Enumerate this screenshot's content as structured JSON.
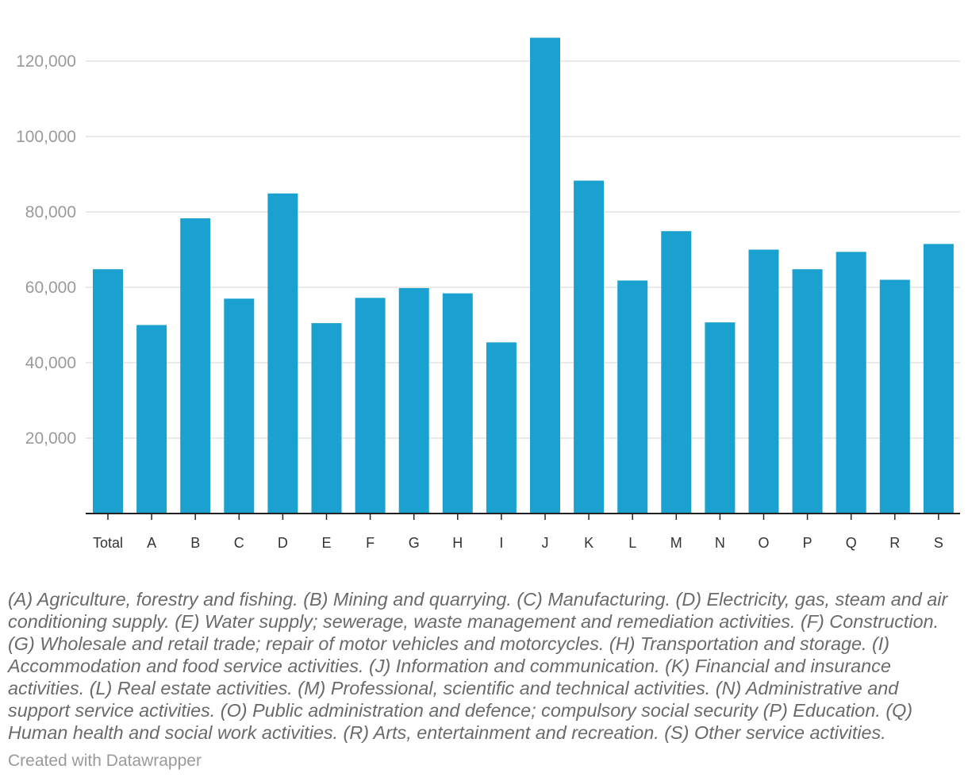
{
  "chart_data": {
    "type": "bar",
    "categories": [
      "Total",
      "A",
      "B",
      "C",
      "D",
      "E",
      "F",
      "G",
      "H",
      "I",
      "J",
      "K",
      "L",
      "M",
      "N",
      "O",
      "P",
      "Q",
      "R",
      "S"
    ],
    "values": [
      64800,
      50000,
      78300,
      57000,
      84900,
      50500,
      57200,
      59800,
      58400,
      45400,
      126200,
      88300,
      61800,
      74900,
      50700,
      70000,
      64800,
      69400,
      62000,
      71500
    ],
    "yticks": [
      20000,
      40000,
      60000,
      80000,
      100000,
      120000
    ],
    "ytick_labels": [
      "20,000",
      "40,000",
      "60,000",
      "80,000",
      "100,000",
      "120,000"
    ],
    "ylim": [
      0,
      130000
    ],
    "grid": true,
    "bar_color": "#1aa1cf",
    "title": "",
    "xlabel": "",
    "ylabel": ""
  },
  "note": "(A) Agriculture, forestry and fishing. (B) Mining and quarrying. (C) Manufacturing. (D) Electricity, gas, steam and air conditioning supply. (E) Water supply; sewerage, waste management and remediation activities. (F) Construction. (G) Wholesale and retail trade; repair of motor vehicles and motorcycles. (H) Transportation and storage. (I) Accommodation and food service activities. (J) Information and communication. (K) Financial and insurance activities. (L) Real estate activities. (M) Professional, scientific and technical activities. (N) Administrative and support service activities. (O) Public administration and defence; compulsory social security (P) Education. (Q) Human health and social work activities. (R) Arts, entertainment and recreation. (S) Other service activities.",
  "credit": "Created with Datawrapper"
}
